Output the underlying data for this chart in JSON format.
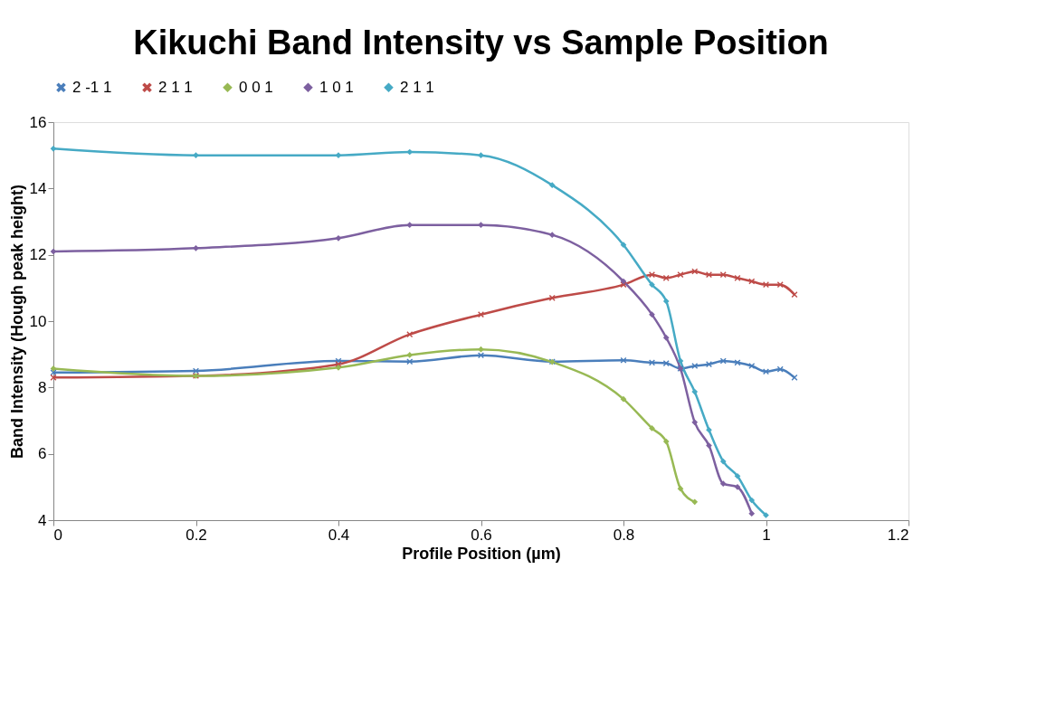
{
  "chart_data": {
    "type": "line",
    "title": "Kikuchi Band Intensity vs Sample Position",
    "xlabel": "Profile Position (µm)",
    "ylabel": "Band Intensity (Hough peak height)",
    "x": [
      0,
      0.2,
      0.4,
      0.5,
      0.6,
      0.7,
      0.8,
      0.84,
      0.86,
      0.88,
      0.9,
      0.92,
      0.94,
      0.96,
      0.98,
      1.0,
      1.02,
      1.04
    ],
    "xlim": [
      0,
      1.2
    ],
    "xticks": [
      0,
      0.2,
      0.4,
      0.6,
      0.8,
      1,
      1.2
    ],
    "ylim": [
      4,
      16
    ],
    "yticks": [
      4,
      6,
      8,
      10,
      12,
      14,
      16
    ],
    "grid": false,
    "legend": "top",
    "line_style": "solid",
    "series": [
      {
        "name": "2 -1 1",
        "color": "#4a7ebb",
        "marker": "cross",
        "values": [
          8.45,
          8.5,
          8.8,
          8.78,
          8.97,
          8.78,
          8.82,
          8.75,
          8.73,
          8.57,
          8.65,
          8.7,
          8.8,
          8.75,
          8.65,
          8.48,
          8.55,
          8.3
        ]
      },
      {
        "name": "2 1 1",
        "color": "#be4b48",
        "marker": "cross",
        "values": [
          8.3,
          8.35,
          8.7,
          9.6,
          10.2,
          10.7,
          11.1,
          11.4,
          11.3,
          11.4,
          11.5,
          11.4,
          11.4,
          11.3,
          11.2,
          11.1,
          11.1,
          10.8
        ]
      },
      {
        "name": "0 0 1",
        "color": "#98b954",
        "marker": "diamond",
        "values": [
          8.57,
          8.35,
          8.6,
          8.98,
          9.15,
          8.77,
          7.65,
          6.77,
          6.37,
          4.95,
          4.55,
          null,
          null,
          null,
          null,
          null,
          null,
          null
        ]
      },
      {
        "name": "1 0 1",
        "color": "#7d60a0",
        "marker": "diamond",
        "values": [
          12.1,
          12.2,
          12.5,
          12.9,
          12.9,
          12.6,
          11.2,
          10.2,
          9.5,
          8.57,
          6.95,
          6.25,
          5.1,
          5.0,
          4.2,
          null,
          null,
          null
        ]
      },
      {
        "name": "2 1 1",
        "color": "#46aac5",
        "marker": "diamond",
        "values": [
          15.2,
          15.0,
          15.0,
          15.1,
          15.0,
          14.1,
          12.3,
          11.1,
          10.6,
          8.8,
          7.87,
          6.72,
          5.77,
          5.33,
          4.6,
          4.15,
          null,
          null
        ]
      }
    ]
  }
}
